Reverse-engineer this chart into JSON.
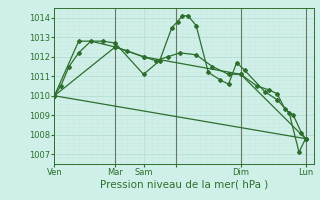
{
  "title": "Pression niveau de la mer( hPa )",
  "bg_color": "#cef0e8",
  "grid_major_color": "#b8ddd4",
  "grid_minor_color": "#cce8e0",
  "line_color": "#2d6e2d",
  "vline_color": "#667766",
  "ylim": [
    1006.5,
    1014.5
  ],
  "yticks": [
    1007,
    1008,
    1009,
    1010,
    1011,
    1012,
    1013,
    1014
  ],
  "xtick_positions": [
    0,
    75,
    110,
    150,
    230,
    310
  ],
  "xtick_labels": [
    "Ven",
    "Mar",
    "Sam",
    "",
    "Dim",
    "Lun"
  ],
  "xlim": [
    0,
    320
  ],
  "series": [
    [
      0,
      1010.0,
      8,
      1010.5,
      18,
      1011.5,
      30,
      1012.2,
      45,
      1012.8,
      75,
      1012.5,
      90,
      1012.3,
      110,
      1012.0,
      125,
      1011.8,
      140,
      1012.0,
      155,
      1012.2,
      175,
      1012.1,
      195,
      1011.5,
      215,
      1011.1,
      230,
      1011.1,
      250,
      1010.5,
      265,
      1010.3,
      275,
      1010.1,
      285,
      1009.3,
      295,
      1009.0,
      305,
      1008.1,
      310,
      1007.8
    ],
    [
      0,
      1010.0,
      30,
      1012.8,
      60,
      1012.8,
      75,
      1012.7,
      110,
      1011.1,
      130,
      1011.8,
      145,
      1013.5,
      152,
      1013.8,
      158,
      1014.1,
      165,
      1014.1,
      175,
      1013.6,
      190,
      1011.2,
      205,
      1010.8,
      215,
      1010.6,
      225,
      1011.7,
      235,
      1011.3,
      260,
      1010.2,
      275,
      1009.8,
      290,
      1009.1,
      302,
      1007.1,
      310,
      1007.8
    ],
    [
      0,
      1010.0,
      75,
      1012.5,
      110,
      1012.0,
      230,
      1011.1,
      310,
      1007.8
    ],
    [
      0,
      1010.0,
      310,
      1007.8
    ]
  ],
  "vlines": [
    75,
    150,
    230,
    310
  ],
  "marker": "D",
  "marker_size": 2.0,
  "line_width": 0.9,
  "title_fontsize": 7.5,
  "tick_fontsize": 6
}
